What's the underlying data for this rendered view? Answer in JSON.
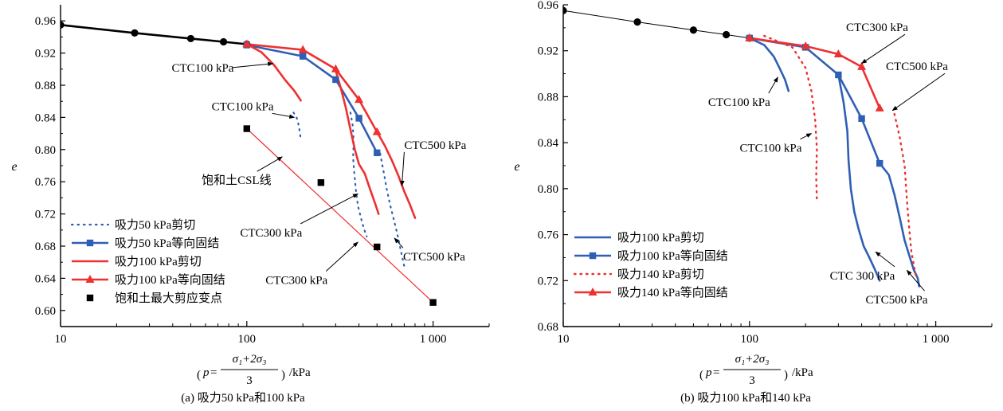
{
  "colors": {
    "blue": "#2f5fb4",
    "red": "#ee3030",
    "black": "#000000",
    "dark_red": "#d42a2a"
  },
  "x_axis_title": {
    "lparen": "(",
    "p": "p",
    "eq": "=",
    "numerator": "σ₁+2σ₃",
    "denominator": "3",
    "rparen": ")",
    "unit": "/kPa"
  },
  "chart_data": [
    {
      "id": "a",
      "type": "line",
      "caption": "(a) 吸力50 kPa和100 kPa",
      "xscale": "log",
      "xlim": [
        10,
        2000
      ],
      "ylim": [
        0.58,
        0.98
      ],
      "xticks": [
        10,
        100,
        1000
      ],
      "xtick_labels": [
        "10",
        "100",
        "1 000"
      ],
      "yticks": [
        0.6,
        0.64,
        0.68,
        0.72,
        0.76,
        0.8,
        0.84,
        0.88,
        0.92,
        0.96
      ],
      "ytick_labels": [
        "0.60",
        "0.64",
        "0.68",
        "0.72",
        "0.76",
        "0.80",
        "0.84",
        "0.88",
        "0.92",
        "0.96"
      ],
      "ylabel": "e",
      "legend_position": "bottom-left",
      "series": [
        {
          "name": "",
          "color": "#000000",
          "style": "solid",
          "width": 2.6,
          "marker": "circle",
          "points": [
            [
              10,
              0.955
            ],
            [
              25,
              0.945
            ],
            [
              50,
              0.938
            ],
            [
              75,
              0.934
            ],
            [
              100,
              0.931
            ]
          ]
        },
        {
          "name": "吸力50 kPa剪切",
          "color": "#2f5fb4",
          "style": "dotted",
          "width": 2.2,
          "marker": "none",
          "points": [
            [
              178,
              0.846
            ],
            [
              185,
              0.84
            ],
            [
              190,
              0.83
            ],
            [
              193,
              0.82
            ],
            [
              195,
              0.812
            ]
          ]
        },
        {
          "name": "",
          "color": "#2f5fb4",
          "style": "dotted",
          "width": 2.2,
          "marker": "none",
          "points": [
            [
              360,
              0.846
            ],
            [
              370,
              0.83
            ],
            [
              375,
              0.81
            ],
            [
              372,
              0.79
            ],
            [
              378,
              0.77
            ],
            [
              385,
              0.75
            ],
            [
              395,
              0.73
            ],
            [
              410,
              0.715
            ],
            [
              425,
              0.702
            ],
            [
              440,
              0.692
            ]
          ]
        },
        {
          "name": "",
          "color": "#2f5fb4",
          "style": "dotted",
          "width": 2.2,
          "marker": "none",
          "points": [
            [
              520,
              0.795
            ],
            [
              545,
              0.77
            ],
            [
              565,
              0.75
            ],
            [
              590,
              0.73
            ],
            [
              620,
              0.71
            ],
            [
              650,
              0.69
            ],
            [
              670,
              0.675
            ],
            [
              690,
              0.662
            ],
            [
              705,
              0.652
            ]
          ]
        },
        {
          "name": "吸力50 kPa等向固结",
          "color": "#2f5fb4",
          "style": "solid",
          "width": 2.6,
          "marker": "square",
          "points": [
            [
              100,
              0.93
            ],
            [
              200,
              0.916
            ],
            [
              300,
              0.887
            ],
            [
              400,
              0.839
            ],
            [
              500,
              0.796
            ]
          ]
        },
        {
          "name": "吸力100 kPa剪切",
          "color": "#ee3030",
          "style": "solid",
          "width": 2.6,
          "marker": "none",
          "points": [
            [
              100,
              0.931
            ],
            [
              120,
              0.921
            ],
            [
              140,
              0.905
            ],
            [
              160,
              0.887
            ],
            [
              180,
              0.873
            ],
            [
              195,
              0.861
            ]
          ]
        },
        {
          "name": "",
          "color": "#ee3030",
          "style": "solid",
          "width": 2.6,
          "marker": "none",
          "points": [
            [
              300,
              0.898
            ],
            [
              320,
              0.876
            ],
            [
              340,
              0.852
            ],
            [
              360,
              0.825
            ],
            [
              380,
              0.8
            ],
            [
              400,
              0.782
            ],
            [
              430,
              0.77
            ],
            [
              460,
              0.75
            ],
            [
              490,
              0.732
            ],
            [
              510,
              0.72
            ]
          ]
        },
        {
          "name": "",
          "color": "#ee3030",
          "style": "solid",
          "width": 2.6,
          "marker": "none",
          "points": [
            [
              500,
              0.822
            ],
            [
              550,
              0.805
            ],
            [
              600,
              0.787
            ],
            [
              650,
              0.768
            ],
            [
              700,
              0.748
            ],
            [
              750,
              0.732
            ],
            [
              800,
              0.715
            ]
          ]
        },
        {
          "name": "吸力100 kPa等向固结",
          "color": "#ee3030",
          "style": "solid",
          "width": 2.6,
          "marker": "triangle",
          "points": [
            [
              100,
              0.931
            ],
            [
              200,
              0.924
            ],
            [
              300,
              0.9
            ],
            [
              400,
              0.862
            ],
            [
              500,
              0.822
            ]
          ]
        },
        {
          "name": "饱和土最大剪应变点",
          "color": "#000000",
          "style": "none",
          "width": 0,
          "marker": "square",
          "points": [
            [
              100,
              0.826
            ],
            [
              250,
              0.759
            ],
            [
              500,
              0.679
            ],
            [
              1000,
              0.61
            ]
          ]
        },
        {
          "name": "",
          "color": "#ee3030",
          "style": "solid",
          "width": 1.2,
          "marker": "none",
          "points": [
            [
              100,
              0.826
            ],
            [
              1000,
              0.61
            ]
          ]
        }
      ],
      "annotations": [
        {
          "text": "CTC100 kPa",
          "x": 58,
          "y": 0.897,
          "anchor": "middle",
          "arrow_to": [
            138,
            0.907
          ]
        },
        {
          "text": "CTC100 kPa",
          "x": 95,
          "y": 0.849,
          "anchor": "middle",
          "arrow_to": [
            180,
            0.84
          ]
        },
        {
          "text": "CTC500 kPa",
          "x": 700,
          "y": 0.801,
          "anchor": "start",
          "arrow_to": [
            680,
            0.755
          ]
        },
        {
          "text": "饱和土CSL线",
          "x": 88,
          "y": 0.757,
          "anchor": "middle",
          "arrow_to": [
            155,
            0.791
          ]
        },
        {
          "text": "CTC300 kPa",
          "x": 135,
          "y": 0.692,
          "anchor": "middle",
          "arrow_to": [
            395,
            0.745
          ]
        },
        {
          "text": "CTC500 kPa",
          "x": 690,
          "y": 0.662,
          "anchor": "start",
          "arrow_to": [
            620,
            0.69
          ]
        },
        {
          "text": "CTC300 kPa",
          "x": 185,
          "y": 0.633,
          "anchor": "middle",
          "arrow_to": [
            395,
            0.685
          ]
        }
      ]
    },
    {
      "id": "b",
      "type": "line",
      "caption": "(b) 吸力100 kPa和140 kPa",
      "xscale": "log",
      "xlim": [
        10,
        2000
      ],
      "ylim": [
        0.68,
        0.96
      ],
      "xticks": [
        10,
        100,
        1000
      ],
      "xtick_labels": [
        "10",
        "100",
        "1 000"
      ],
      "yticks": [
        0.68,
        0.72,
        0.76,
        0.8,
        0.84,
        0.88,
        0.92,
        0.96
      ],
      "ytick_labels": [
        "0.68",
        "0.72",
        "0.76",
        "0.80",
        "0.84",
        "0.88",
        "0.92",
        "0.96"
      ],
      "ylabel": "e",
      "legend_position": "bottom-left",
      "series": [
        {
          "name": "",
          "color": "#000000",
          "style": "solid",
          "width": 1,
          "marker": "circle",
          "points": [
            [
              10,
              0.955
            ],
            [
              25,
              0.945
            ],
            [
              50,
              0.938
            ],
            [
              75,
              0.934
            ],
            [
              100,
              0.931
            ]
          ]
        },
        {
          "name": "吸力100 kPa剪切",
          "color": "#2f5fb4",
          "style": "solid",
          "width": 2.6,
          "marker": "none",
          "points": [
            [
              100,
              0.931
            ],
            [
              120,
              0.925
            ],
            [
              135,
              0.915
            ],
            [
              145,
              0.905
            ],
            [
              155,
              0.895
            ],
            [
              162,
              0.885
            ]
          ]
        },
        {
          "name": "",
          "color": "#2f5fb4",
          "style": "solid",
          "width": 2.6,
          "marker": "none",
          "points": [
            [
              300,
              0.899
            ],
            [
              320,
              0.875
            ],
            [
              335,
              0.85
            ],
            [
              340,
              0.825
            ],
            [
              350,
              0.8
            ],
            [
              365,
              0.78
            ],
            [
              385,
              0.765
            ],
            [
              410,
              0.75
            ],
            [
              440,
              0.74
            ],
            [
              470,
              0.73
            ],
            [
              500,
              0.72
            ]
          ]
        },
        {
          "name": "",
          "color": "#2f5fb4",
          "style": "solid",
          "width": 2.6,
          "marker": "none",
          "points": [
            [
              500,
              0.822
            ],
            [
              560,
              0.812
            ],
            [
              600,
              0.795
            ],
            [
              640,
              0.775
            ],
            [
              680,
              0.755
            ],
            [
              720,
              0.742
            ],
            [
              760,
              0.73
            ],
            [
              800,
              0.722
            ],
            [
              815,
              0.715
            ]
          ]
        },
        {
          "name": "吸力100 kPa等向固结",
          "color": "#2f5fb4",
          "style": "solid",
          "width": 2.6,
          "marker": "square",
          "points": [
            [
              100,
              0.931
            ],
            [
              200,
              0.923
            ],
            [
              300,
              0.899
            ],
            [
              400,
              0.861
            ],
            [
              500,
              0.822
            ]
          ]
        },
        {
          "name": "吸力140 kPa剪切",
          "color": "#ee3030",
          "style": "dotted",
          "width": 2.4,
          "marker": "none",
          "points": [
            [
              120,
              0.933
            ],
            [
              170,
              0.923
            ],
            [
              200,
              0.905
            ],
            [
              215,
              0.885
            ],
            [
              225,
              0.86
            ],
            [
              230,
              0.835
            ],
            [
              228,
              0.81
            ],
            [
              230,
              0.79
            ]
          ]
        },
        {
          "name": "",
          "color": "#ee3030",
          "style": "dotted",
          "width": 2.4,
          "marker": "none",
          "points": [
            [
              600,
              0.865
            ],
            [
              640,
              0.845
            ],
            [
              680,
              0.82
            ],
            [
              700,
              0.79
            ],
            [
              720,
              0.765
            ],
            [
              740,
              0.745
            ],
            [
              760,
              0.735
            ],
            [
              780,
              0.725
            ]
          ]
        },
        {
          "name": "吸力140 kPa等向固结",
          "color": "#ee3030",
          "style": "solid",
          "width": 2.6,
          "marker": "triangle",
          "points": [
            [
              100,
              0.931
            ],
            [
              200,
              0.924
            ],
            [
              300,
              0.917
            ],
            [
              400,
              0.906
            ],
            [
              500,
              0.87
            ]
          ]
        }
      ],
      "annotations": [
        {
          "text": "CTC300 kPa",
          "x": 330,
          "y": 0.937,
          "anchor": "start",
          "arrow_to": [
            400,
            0.909
          ]
        },
        {
          "text": "CTC500 kPa",
          "x": 540,
          "y": 0.903,
          "anchor": "start",
          "arrow_to": [
            585,
            0.868
          ]
        },
        {
          "text": "CTC100 kPa",
          "x": 88,
          "y": 0.872,
          "anchor": "middle",
          "arrow_to": [
            142,
            0.897
          ]
        },
        {
          "text": "CTC100 kPa",
          "x": 130,
          "y": 0.832,
          "anchor": "middle",
          "arrow_to": [
            215,
            0.848
          ]
        },
        {
          "text": "CTC 300 kPa",
          "x": 270,
          "y": 0.721,
          "anchor": "start",
          "arrow_to": [
            475,
            0.745
          ]
        },
        {
          "text": "CTC500 kPa",
          "x": 420,
          "y": 0.7,
          "anchor": "start",
          "arrow_to": [
            700,
            0.729
          ]
        }
      ]
    }
  ]
}
